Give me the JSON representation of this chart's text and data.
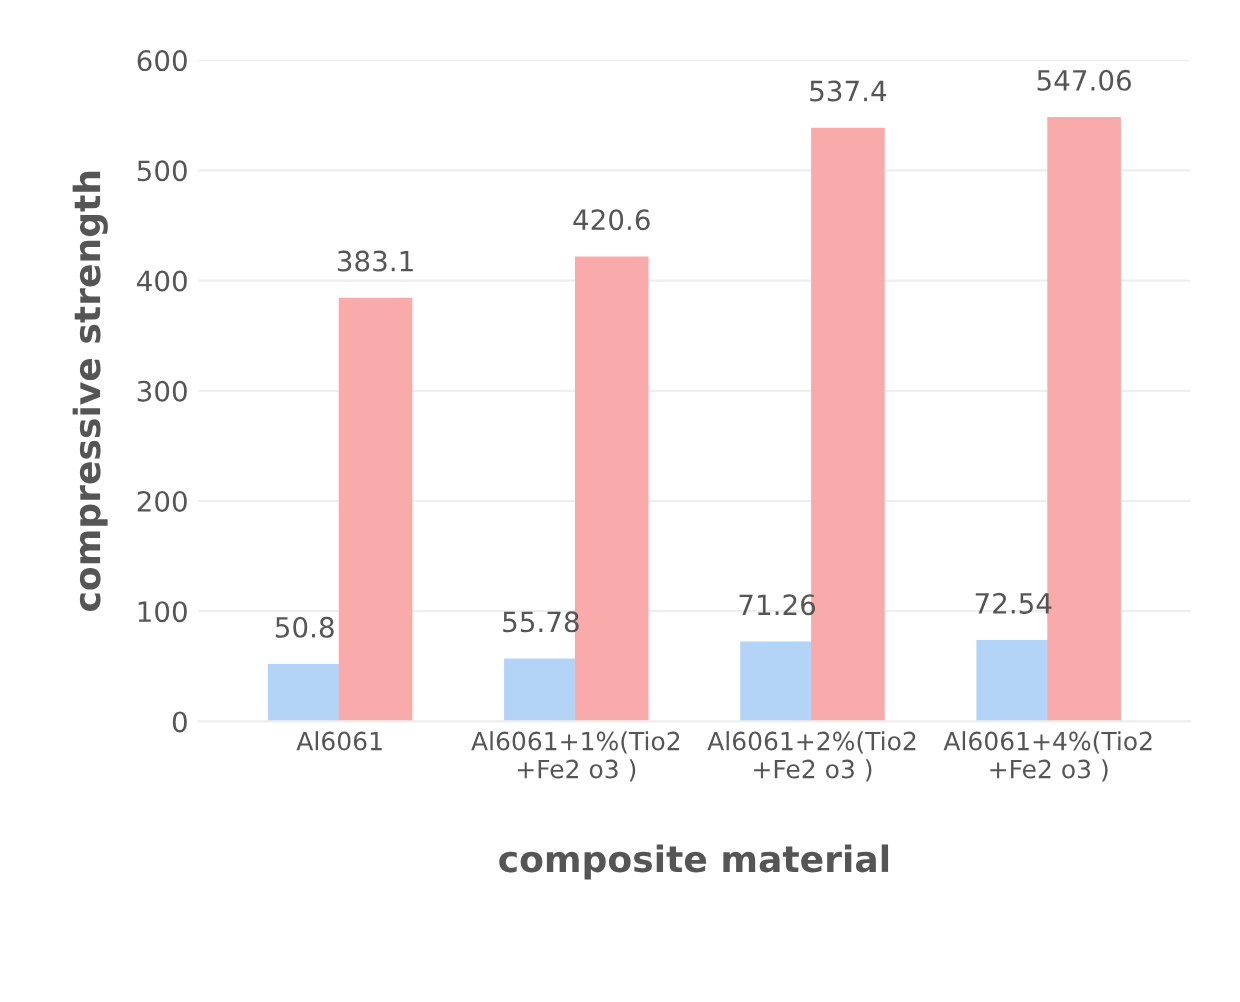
{
  "chart_data": {
    "type": "bar",
    "xlabel": "composite material",
    "ylabel": "compressive strength",
    "categories": [
      "Al6061",
      "Al6061+1%(Tio2\n+Fe2 o3 )",
      "Al6061+2%(Tio2\n+Fe2 o3 )",
      "Al6061+4%(Tio2\n+Fe2 o3 )"
    ],
    "series": [
      {
        "color": "#b4d4f7",
        "values": [
          50.8,
          55.78,
          71.26,
          72.54
        ]
      },
      {
        "color": "#f9aaaa",
        "values": [
          383.1,
          420.6,
          537.4,
          547.06
        ]
      }
    ],
    "ylim": [
      0,
      600
    ],
    "yticks": [
      0,
      100,
      200,
      300,
      400,
      500,
      600
    ],
    "grid": "y",
    "data_labels": true
  }
}
